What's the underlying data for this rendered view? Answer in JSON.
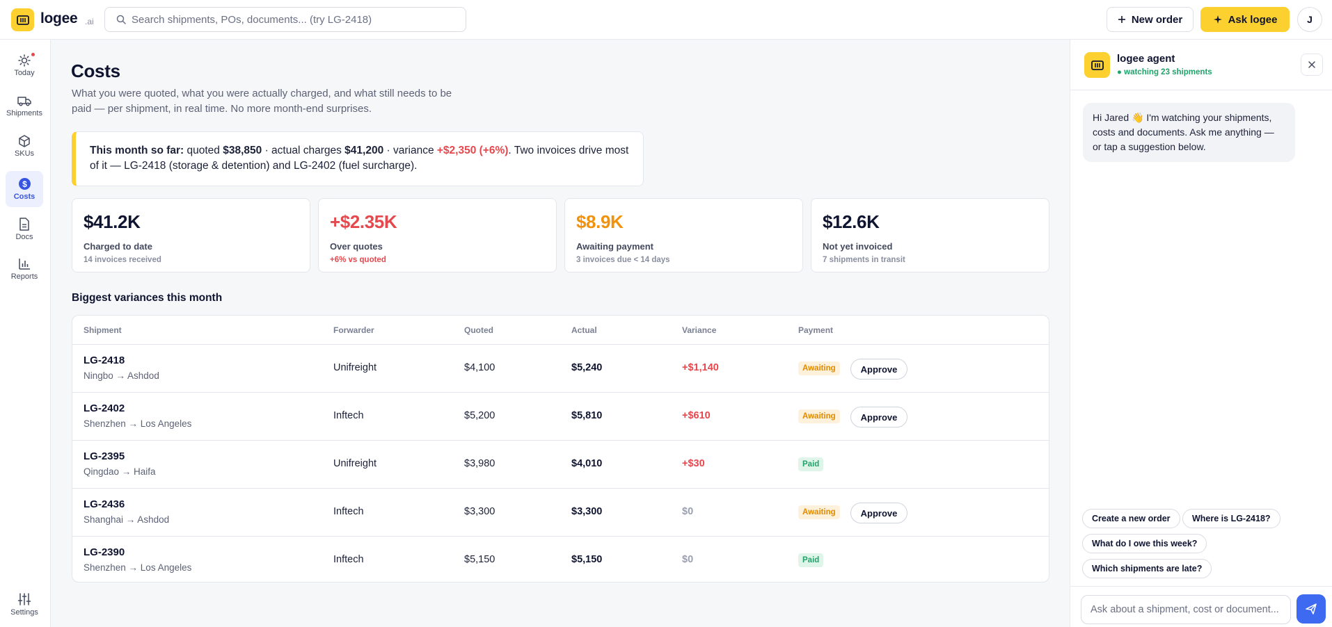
{
  "header": {
    "brand": "logee",
    "brand_suffix": ".ai",
    "search_placeholder": "Search shipments, POs, documents... (try LG-2418)",
    "new_order_label": "New order",
    "ask_label": "Ask logee",
    "avatar_initial": "J",
    "accent_color": "#fcd02e"
  },
  "sidebar": {
    "items": [
      {
        "label": "Today",
        "icon": "sun-icon",
        "badge": true
      },
      {
        "label": "Shipments",
        "icon": "truck-icon"
      },
      {
        "label": "SKUs",
        "icon": "box-icon"
      },
      {
        "label": "Costs",
        "icon": "dollar-icon",
        "active": true
      },
      {
        "label": "Docs",
        "icon": "document-icon"
      },
      {
        "label": "Reports",
        "icon": "bar-chart-icon"
      }
    ],
    "settings_label": "Settings"
  },
  "main": {
    "title": "Costs",
    "subtitle": "What you were quoted, what you were actually charged, and what still needs to be paid — per shipment, in real time. No more month-end surprises.",
    "callout": {
      "lead": "This month so far:",
      "t1": " quoted ",
      "quoted": "$38,850",
      "t2": " · actual charges ",
      "actual": "$41,200",
      "t3": " · variance ",
      "variance": "+$2,350 (+6%)",
      "t4": ". Two invoices drive most of it — LG-2418 (storage & detention) and LG-2402 (fuel surcharge)."
    },
    "kpis": [
      {
        "value": "$41.2K",
        "label": "Charged to date",
        "sub": "14 invoices received",
        "value_color": "#0f1430",
        "sub_color": "#8a8fa0"
      },
      {
        "value": "+$2.35K",
        "label": "Over quotes",
        "sub": "+6% vs quoted",
        "value_color": "#e5484d",
        "sub_color": "#e5484d"
      },
      {
        "value": "$8.9K",
        "label": "Awaiting payment",
        "sub": "3 invoices due < 14 days",
        "value_color": "#f0920d",
        "sub_color": "#8a8fa0"
      },
      {
        "value": "$12.6K",
        "label": "Not yet invoiced",
        "sub": "7 shipments in transit",
        "value_color": "#0f1430",
        "sub_color": "#8a8fa0"
      }
    ],
    "section_title": "Biggest variances this month",
    "table": {
      "headers": [
        "Shipment",
        "Forwarder",
        "Quoted",
        "Actual",
        "Variance",
        "Payment"
      ],
      "approve_label": "Approve",
      "rows": [
        {
          "id": "LG-2418",
          "route": "Ningbo → Ashdod",
          "forwarder": "Unifreight",
          "quoted": "$4,100",
          "actual": "$5,240",
          "variance": "+$1,140",
          "variance_type": "red",
          "payment": "Awaiting",
          "approve": true
        },
        {
          "id": "LG-2402",
          "route": "Shenzhen → Los Angeles",
          "forwarder": "Inftech",
          "quoted": "$5,200",
          "actual": "$5,810",
          "variance": "+$610",
          "variance_type": "red",
          "payment": "Awaiting",
          "approve": true
        },
        {
          "id": "LG-2395",
          "route": "Qingdao → Haifa",
          "forwarder": "Unifreight",
          "quoted": "$3,980",
          "actual": "$4,010",
          "variance": "+$30",
          "variance_type": "red",
          "payment": "Paid",
          "approve": false
        },
        {
          "id": "LG-2436",
          "route": "Shanghai → Ashdod",
          "forwarder": "Inftech",
          "quoted": "$3,300",
          "actual": "$3,300",
          "variance": "$0",
          "variance_type": "zero",
          "payment": "Awaiting",
          "approve": true
        },
        {
          "id": "LG-2390",
          "route": "Shenzhen → Los Angeles",
          "forwarder": "Inftech",
          "quoted": "$5,150",
          "actual": "$5,150",
          "variance": "$0",
          "variance_type": "zero",
          "payment": "Paid",
          "approve": false
        }
      ]
    }
  },
  "agent": {
    "name": "logee agent",
    "status": "● watching 23 shipments",
    "greeting": "Hi Jared 👋 I'm watching your shipments, costs and documents. Ask me anything — or tap a suggestion below.",
    "suggestions": [
      "Create a new order",
      "Where is LG-2418?",
      "What do I owe this week?",
      "Which shipments are late?"
    ],
    "input_placeholder": "Ask about a shipment, cost or document..."
  }
}
